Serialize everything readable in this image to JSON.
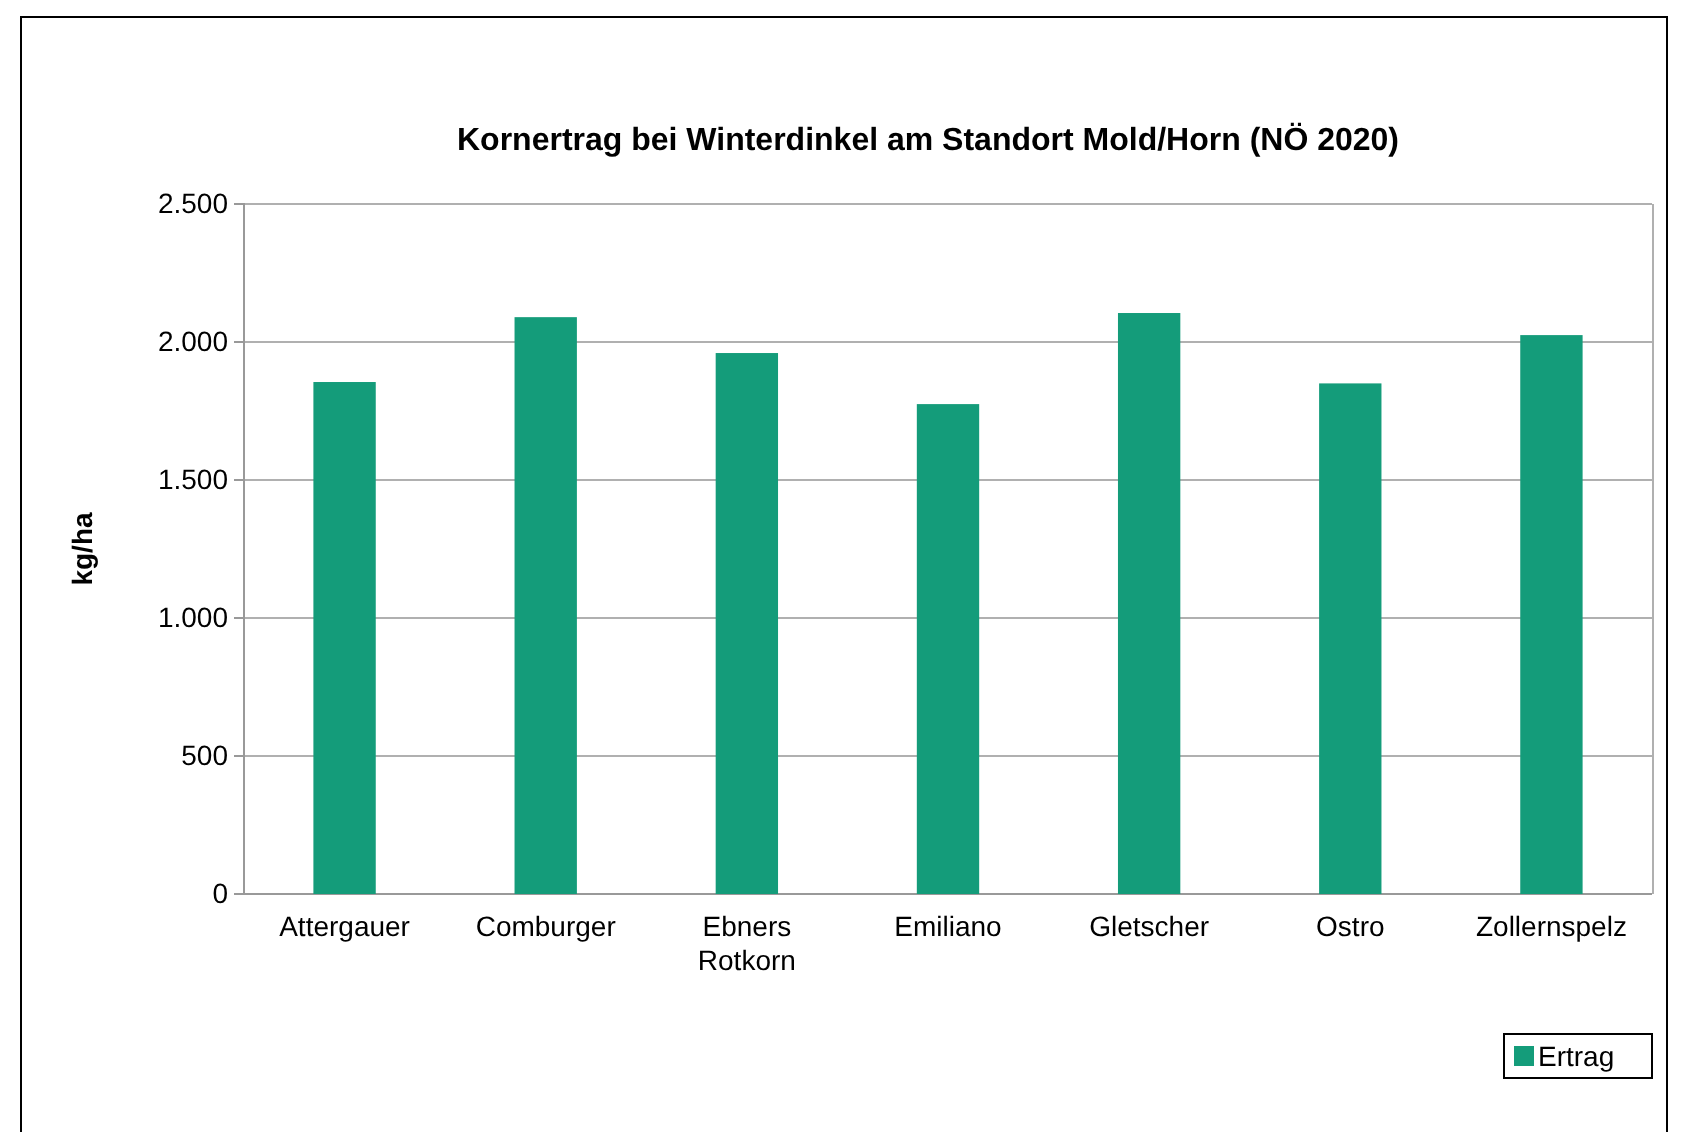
{
  "chart_data": {
    "type": "bar",
    "title": "Kornertrag bei Winterdinkel am Standort Mold/Horn (NÖ 2020)",
    "ylabel": "kg/ha",
    "categories": [
      "Attergauer",
      "Comburger",
      "Ebners Rotkorn",
      "Emiliano",
      "Gletscher",
      "Ostro",
      "Zollernspelz"
    ],
    "series": [
      {
        "name": "Ertrag",
        "color": "#149c7a",
        "values": [
          1855,
          2090,
          1960,
          1775,
          2105,
          1850,
          2025
        ]
      }
    ],
    "ylim": [
      0,
      2500
    ],
    "yticks": [
      {
        "value": 0,
        "label": "0"
      },
      {
        "value": 500,
        "label": "500"
      },
      {
        "value": 1000,
        "label": "1.000"
      },
      {
        "value": 1500,
        "label": "1.500"
      },
      {
        "value": 2000,
        "label": "2.000"
      },
      {
        "value": 2500,
        "label": "2.500"
      }
    ],
    "grid": "y",
    "legend": "bottom right"
  }
}
